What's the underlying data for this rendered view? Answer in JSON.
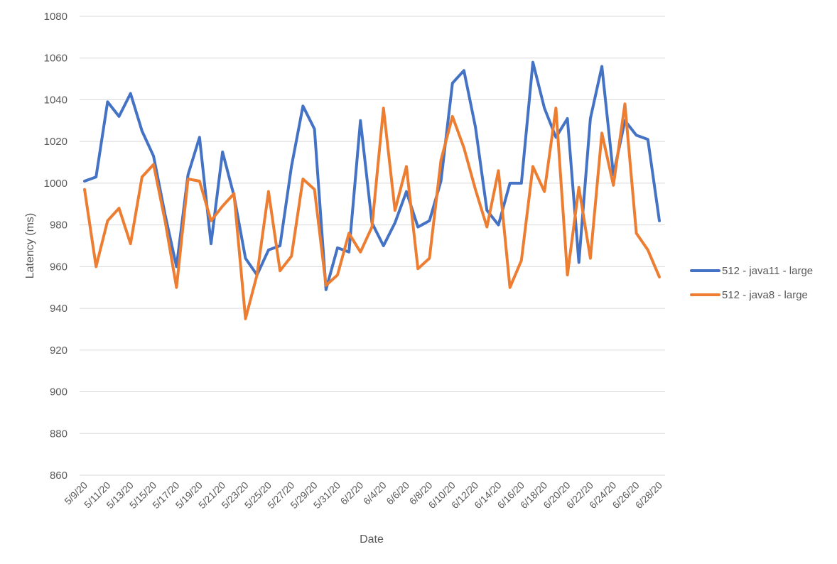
{
  "chart_data": {
    "type": "line",
    "title": "",
    "xlabel": "Date",
    "ylabel": "Latency (ms)",
    "ylim": [
      860,
      1080
    ],
    "yticks": [
      860,
      880,
      900,
      920,
      940,
      960,
      980,
      1000,
      1020,
      1040,
      1060,
      1080
    ],
    "ytick_labels": [
      "860",
      "880",
      "900",
      "920",
      "940",
      "960",
      "980",
      "1000",
      "1020",
      "1040",
      "1060",
      "1080"
    ],
    "grid": "horizontal",
    "legend_position": "right",
    "x_tick_labels": [
      "5/9/20",
      "5/11/20",
      "5/13/20",
      "5/15/20",
      "5/17/20",
      "5/19/20",
      "5/21/20",
      "5/23/20",
      "5/25/20",
      "5/27/20",
      "5/29/20",
      "5/31/20",
      "6/2/20",
      "6/4/20",
      "6/6/20",
      "6/8/20",
      "6/10/20",
      "6/12/20",
      "6/14/20",
      "6/16/20",
      "6/18/20",
      "6/20/20",
      "6/22/20",
      "6/24/20",
      "6/26/20",
      "6/28/20"
    ],
    "x": [
      "5/9/20",
      "5/10/20",
      "5/11/20",
      "5/12/20",
      "5/13/20",
      "5/14/20",
      "5/15/20",
      "5/16/20",
      "5/17/20",
      "5/18/20",
      "5/19/20",
      "5/20/20",
      "5/21/20",
      "5/22/20",
      "5/23/20",
      "5/24/20",
      "5/25/20",
      "5/26/20",
      "5/27/20",
      "5/28/20",
      "5/29/20",
      "5/30/20",
      "5/31/20",
      "6/1/20",
      "6/2/20",
      "6/3/20",
      "6/4/20",
      "6/5/20",
      "6/6/20",
      "6/7/20",
      "6/8/20",
      "6/9/20",
      "6/10/20",
      "6/11/20",
      "6/12/20",
      "6/13/20",
      "6/14/20",
      "6/15/20",
      "6/16/20",
      "6/17/20",
      "6/18/20",
      "6/19/20",
      "6/20/20",
      "6/21/20",
      "6/22/20",
      "6/23/20",
      "6/24/20",
      "6/25/20",
      "6/26/20",
      "6/27/20",
      "6/28/20"
    ],
    "series": [
      {
        "name": "512 - java11 - large",
        "color": "#4472C4",
        "values": [
          1001,
          1003,
          1039,
          1032,
          1043,
          1025,
          1013,
          985,
          960,
          1004,
          1022,
          971,
          1015,
          994,
          964,
          956,
          968,
          970,
          1008,
          1037,
          1026,
          949,
          969,
          967,
          1030,
          981,
          970,
          981,
          996,
          979,
          982,
          1001,
          1048,
          1054,
          1027,
          987,
          980,
          1000,
          1000,
          1058,
          1036,
          1022,
          1031,
          962,
          1031,
          1056,
          1004,
          1030,
          1023,
          1021,
          982
        ]
      },
      {
        "name": "512 - java8 - large",
        "color": "#ED7D31",
        "values": [
          997,
          960,
          982,
          988,
          971,
          1003,
          1009,
          982,
          950,
          1002,
          1001,
          982,
          989,
          995,
          935,
          956,
          996,
          958,
          965,
          1002,
          997,
          951,
          956,
          976,
          967,
          979,
          1036,
          987,
          1008,
          959,
          964,
          1011,
          1032,
          1017,
          997,
          979,
          1006,
          950,
          963,
          1008,
          996,
          1036,
          956,
          998,
          964,
          1024,
          999,
          1038,
          976,
          968,
          955
        ]
      }
    ]
  }
}
